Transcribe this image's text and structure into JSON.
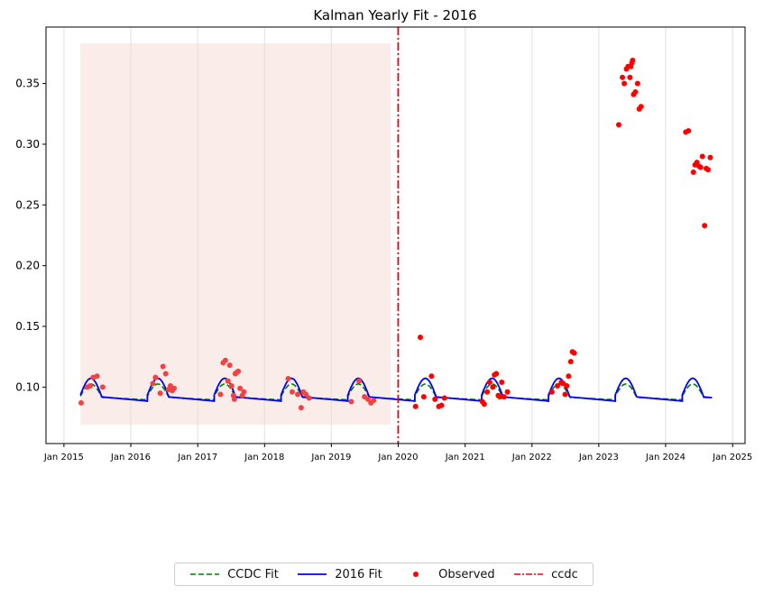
{
  "chart_data": {
    "type": "line",
    "title": "Kalman Yearly Fit - 2016",
    "xlabel": "",
    "ylabel": "",
    "x_range": [
      "2014-09-25",
      "2025-03-10"
    ],
    "ylim": [
      0.0535,
      0.3965
    ],
    "yticks": [
      0.1,
      0.15,
      0.2,
      0.25,
      0.3,
      0.35
    ],
    "ytick_labels": [
      "0.10",
      "0.15",
      "0.20",
      "0.25",
      "0.30",
      "0.35"
    ],
    "xticks": [
      "2015-01-01",
      "2016-01-01",
      "2017-01-01",
      "2018-01-01",
      "2019-01-01",
      "2020-01-01",
      "2021-01-01",
      "2022-01-01",
      "2023-01-01",
      "2024-01-01",
      "2025-01-01"
    ],
    "xtick_labels": [
      "Jan 2015",
      "Jan 2016",
      "Jan 2017",
      "Jan 2018",
      "Jan 2019",
      "Jan 2020",
      "Jan 2021",
      "Jan 2022",
      "Jan 2023",
      "Jan 2024",
      "Jan 2025"
    ],
    "grid": "vertical",
    "shaded_region": {
      "x_start": "2015-04-01",
      "x_end": "2019-11-20",
      "y_start": 0.069,
      "y_end": 0.383,
      "color": "#f4d6cf"
    },
    "vline": {
      "x": "2020-01-01",
      "name": "ccdc",
      "color": "#e8000b",
      "style": "dash-dot"
    },
    "fit_seasons": [
      {
        "start": "2015-04-01",
        "end": "2016-04-01"
      },
      {
        "start": "2016-04-01",
        "end": "2017-04-01"
      },
      {
        "start": "2017-04-01",
        "end": "2018-04-01"
      },
      {
        "start": "2018-04-01",
        "end": "2019-04-01"
      },
      {
        "start": "2019-04-01",
        "end": "2020-04-01"
      },
      {
        "start": "2020-04-01",
        "end": "2021-04-01"
      },
      {
        "start": "2021-04-01",
        "end": "2022-04-01"
      },
      {
        "start": "2022-04-01",
        "end": "2023-04-01"
      },
      {
        "start": "2023-04-01",
        "end": "2024-04-01"
      },
      {
        "start": "2024-04-01",
        "end": "2024-09-10"
      }
    ],
    "fit_params": {
      "kalman_base_start": 0.0935,
      "kalman_base_end": 0.0885,
      "kalman_amplitude": 0.0145,
      "ccdc_base_start": 0.0925,
      "ccdc_base_end": 0.0895,
      "ccdc_amplitude": 0.0105,
      "peak_fraction": 0.26,
      "rise_fraction": 0.32
    },
    "series": [
      {
        "name": "CCDC Fit",
        "style": "dashed",
        "color": "#008000"
      },
      {
        "name": "2016 Fit",
        "style": "solid",
        "color": "#0000ff"
      },
      {
        "name": "Observed",
        "style": "points",
        "color": "#ff0000",
        "points": [
          [
            "2015-04-05",
            0.087
          ],
          [
            "2015-05-10",
            0.1
          ],
          [
            "2015-05-25",
            0.101
          ],
          [
            "2015-06-10",
            0.108
          ],
          [
            "2015-07-01",
            0.109
          ],
          [
            "2015-08-01",
            0.1
          ],
          [
            "2016-05-01",
            0.103
          ],
          [
            "2016-05-15",
            0.108
          ],
          [
            "2016-06-10",
            0.095
          ],
          [
            "2016-06-25",
            0.117
          ],
          [
            "2016-07-10",
            0.111
          ],
          [
            "2016-07-25",
            0.098
          ],
          [
            "2016-08-05",
            0.101
          ],
          [
            "2016-08-15",
            0.097
          ],
          [
            "2016-08-25",
            0.099
          ],
          [
            "2017-05-05",
            0.094
          ],
          [
            "2017-05-20",
            0.12
          ],
          [
            "2017-06-01",
            0.122
          ],
          [
            "2017-06-15",
            0.105
          ],
          [
            "2017-06-25",
            0.118
          ],
          [
            "2017-07-05",
            0.101
          ],
          [
            "2017-07-15",
            0.093
          ],
          [
            "2017-07-20",
            0.09
          ],
          [
            "2017-07-25",
            0.111
          ],
          [
            "2017-08-01",
            0.112
          ],
          [
            "2017-08-10",
            0.113
          ],
          [
            "2017-08-20",
            0.099
          ],
          [
            "2017-09-01",
            0.093
          ],
          [
            "2017-09-10",
            0.096
          ],
          [
            "2018-05-10",
            0.107
          ],
          [
            "2018-06-01",
            0.096
          ],
          [
            "2018-07-01",
            0.094
          ],
          [
            "2018-07-20",
            0.083
          ],
          [
            "2018-08-01",
            0.096
          ],
          [
            "2018-08-15",
            0.094
          ],
          [
            "2018-09-01",
            0.091
          ],
          [
            "2019-04-20",
            0.088
          ],
          [
            "2019-06-01",
            0.105
          ],
          [
            "2019-07-01",
            0.092
          ],
          [
            "2019-07-20",
            0.09
          ],
          [
            "2019-08-05",
            0.087
          ],
          [
            "2019-08-20",
            0.089
          ],
          [
            "2020-04-05",
            0.084
          ],
          [
            "2020-05-01",
            0.141
          ],
          [
            "2020-05-20",
            0.092
          ],
          [
            "2020-07-01",
            0.109
          ],
          [
            "2020-07-20",
            0.09
          ],
          [
            "2020-08-10",
            0.084
          ],
          [
            "2020-08-25",
            0.085
          ],
          [
            "2020-09-10",
            0.091
          ],
          [
            "2021-04-05",
            0.088
          ],
          [
            "2021-04-15",
            0.086
          ],
          [
            "2021-05-01",
            0.096
          ],
          [
            "2021-05-15",
            0.104
          ],
          [
            "2021-06-01",
            0.1
          ],
          [
            "2021-06-10",
            0.11
          ],
          [
            "2021-06-20",
            0.111
          ],
          [
            "2021-07-01",
            0.093
          ],
          [
            "2021-07-10",
            0.092
          ],
          [
            "2021-07-20",
            0.104
          ],
          [
            "2021-08-01",
            0.092
          ],
          [
            "2021-08-20",
            0.096
          ],
          [
            "2022-04-20",
            0.096
          ],
          [
            "2022-05-20",
            0.101
          ],
          [
            "2022-06-10",
            0.104
          ],
          [
            "2022-06-20",
            0.103
          ],
          [
            "2022-07-01",
            0.094
          ],
          [
            "2022-07-10",
            0.101
          ],
          [
            "2022-07-20",
            0.109
          ],
          [
            "2022-08-01",
            0.121
          ],
          [
            "2022-08-10",
            0.129
          ],
          [
            "2022-08-20",
            0.128
          ],
          [
            "2023-04-20",
            0.316
          ],
          [
            "2023-05-10",
            0.355
          ],
          [
            "2023-05-20",
            0.35
          ],
          [
            "2023-06-01",
            0.362
          ],
          [
            "2023-06-10",
            0.364
          ],
          [
            "2023-06-20",
            0.355
          ],
          [
            "2023-06-25",
            0.364
          ],
          [
            "2023-07-01",
            0.367
          ],
          [
            "2023-07-05",
            0.369
          ],
          [
            "2023-07-10",
            0.341
          ],
          [
            "2023-07-20",
            0.343
          ],
          [
            "2023-08-01",
            0.35
          ],
          [
            "2023-08-10",
            0.329
          ],
          [
            "2023-08-20",
            0.331
          ],
          [
            "2024-04-20",
            0.31
          ],
          [
            "2024-05-05",
            0.311
          ],
          [
            "2024-06-01",
            0.277
          ],
          [
            "2024-06-10",
            0.283
          ],
          [
            "2024-06-20",
            0.285
          ],
          [
            "2024-07-01",
            0.282
          ],
          [
            "2024-07-10",
            0.281
          ],
          [
            "2024-07-20",
            0.29
          ],
          [
            "2024-08-01",
            0.233
          ],
          [
            "2024-08-10",
            0.28
          ],
          [
            "2024-08-20",
            0.279
          ],
          [
            "2024-09-01",
            0.289
          ]
        ]
      },
      {
        "name": "ccdc",
        "style": "dash-dot",
        "color": "#e8000b"
      }
    ],
    "legend_position": "bottom-center",
    "colors": {
      "observed_in_shade": "#f04444",
      "observed": "#ff0000",
      "shade": "#f4d6cf"
    }
  }
}
